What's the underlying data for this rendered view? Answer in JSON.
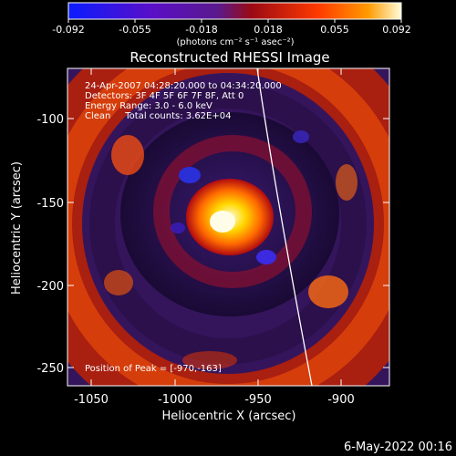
{
  "colorbar": {
    "tick_labels": [
      "-0.092",
      "-0.055",
      "-0.018",
      "0.018",
      "0.055",
      "0.092"
    ],
    "units": "(photons cm⁻² s⁻¹ asec⁻²)"
  },
  "image": {
    "title": "Reconstructed RHESSI Image",
    "info_lines": [
      "24-Apr-2007 04:28:20.000 to 04:34:20.000",
      "Detectors: 3F 4F 5F 6F 7F 8F, Att 0",
      "Energy Range: 3.0 - 6.0 keV",
      "Clean     Total counts: 3.62E+04"
    ],
    "peak_text": "Position of Peak = [-970,-163]"
  },
  "axes": {
    "xlabel": "Heliocentric X (arcsec)",
    "ylabel": "Heliocentric Y (arcsec)",
    "xticks": [
      "-1050",
      "-1000",
      "-950",
      "-900"
    ],
    "yticks": [
      "-100",
      "-150",
      "-200",
      "-250"
    ]
  },
  "footer": {
    "timestamp": "6-May-2022 00:16"
  },
  "colors": {
    "background": "#000000",
    "low": "#0a1cff",
    "mid": "#2a0a55",
    "high": "#ff3a00",
    "peak": "#fffbd0"
  }
}
